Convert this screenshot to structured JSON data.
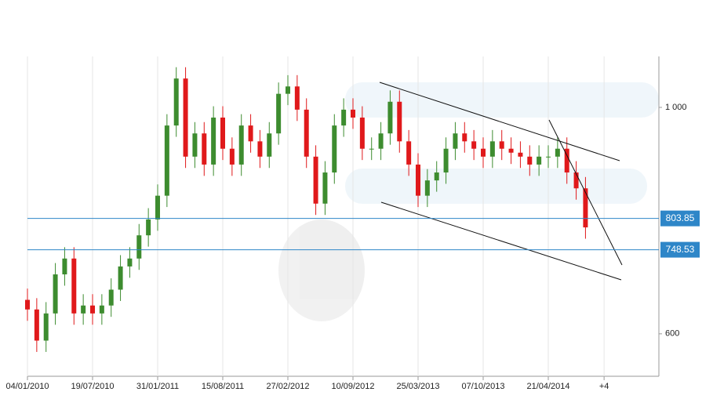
{
  "chart_data": {
    "type": "candlestick",
    "categories": [
      "04/01/2010",
      null,
      null,
      null,
      null,
      null,
      null,
      "19/07/2010",
      null,
      null,
      null,
      null,
      null,
      null,
      "31/01/2011",
      null,
      null,
      null,
      null,
      null,
      null,
      "15/08/2011",
      null,
      null,
      null,
      null,
      null,
      null,
      "27/02/2012",
      null,
      null,
      null,
      null,
      null,
      null,
      "10/09/2012",
      null,
      null,
      null,
      null,
      null,
      null,
      "25/03/2013",
      null,
      null,
      null,
      null,
      null,
      null,
      "07/10/2013",
      null,
      null,
      null,
      null,
      null,
      null,
      "21/04/2014",
      null,
      null,
      null,
      null,
      null,
      "+4"
    ],
    "open": [
      660,
      643,
      588,
      636,
      705,
      733,
      636,
      650,
      636,
      650,
      678,
      719,
      733,
      774,
      802,
      844,
      968,
      1051,
      913,
      954,
      899,
      982,
      927,
      899,
      968,
      940,
      913,
      954,
      1024,
      1037,
      996,
      913,
      830,
      885,
      968,
      996,
      982,
      927,
      927,
      954,
      1010,
      940,
      899,
      844,
      871,
      885,
      927,
      954,
      940,
      927,
      913,
      940,
      927,
      920,
      913,
      899,
      913,
      913,
      927,
      885,
      857,
      null,
      null
    ],
    "high": [
      680,
      663,
      656,
      725,
      753,
      753,
      670,
      670,
      670,
      698,
      739,
      753,
      794,
      822,
      864,
      988,
      1071,
      1071,
      974,
      974,
      1002,
      1002,
      947,
      988,
      988,
      960,
      974,
      1044,
      1057,
      1057,
      1016,
      933,
      905,
      988,
      1016,
      1016,
      1002,
      947,
      974,
      1030,
      1030,
      960,
      919,
      891,
      905,
      947,
      974,
      974,
      960,
      947,
      960,
      960,
      947,
      940,
      933,
      933,
      933,
      947,
      947,
      905,
      877,
      null,
      null
    ],
    "low": [
      623,
      568,
      568,
      616,
      685,
      616,
      616,
      616,
      616,
      630,
      658,
      699,
      713,
      754,
      782,
      824,
      948,
      893,
      893,
      879,
      879,
      907,
      879,
      879,
      920,
      893,
      893,
      934,
      1004,
      976,
      893,
      810,
      810,
      865,
      948,
      962,
      907,
      907,
      907,
      934,
      920,
      879,
      824,
      824,
      851,
      865,
      907,
      920,
      907,
      893,
      893,
      907,
      900,
      893,
      879,
      879,
      893,
      893,
      865,
      837,
      768,
      null,
      null
    ],
    "close": [
      643,
      588,
      636,
      705,
      733,
      636,
      650,
      636,
      650,
      678,
      719,
      733,
      774,
      802,
      844,
      968,
      1051,
      913,
      954,
      899,
      982,
      927,
      899,
      968,
      940,
      913,
      954,
      1024,
      1037,
      996,
      913,
      830,
      885,
      968,
      996,
      982,
      927,
      927,
      954,
      1010,
      940,
      899,
      844,
      871,
      885,
      927,
      954,
      940,
      927,
      913,
      940,
      927,
      920,
      913,
      899,
      913,
      913,
      927,
      885,
      857,
      788,
      null,
      null
    ],
    "up_color": "#3d8c2f",
    "down_color": "#e0191b",
    "ylim": [
      525,
      1090
    ],
    "yticks": [
      600,
      {
        "value": 1000,
        "label": "1 000"
      }
    ],
    "levels": [
      803.85,
      748.53
    ],
    "level_color": "#2e86c8",
    "grid": true
  }
}
